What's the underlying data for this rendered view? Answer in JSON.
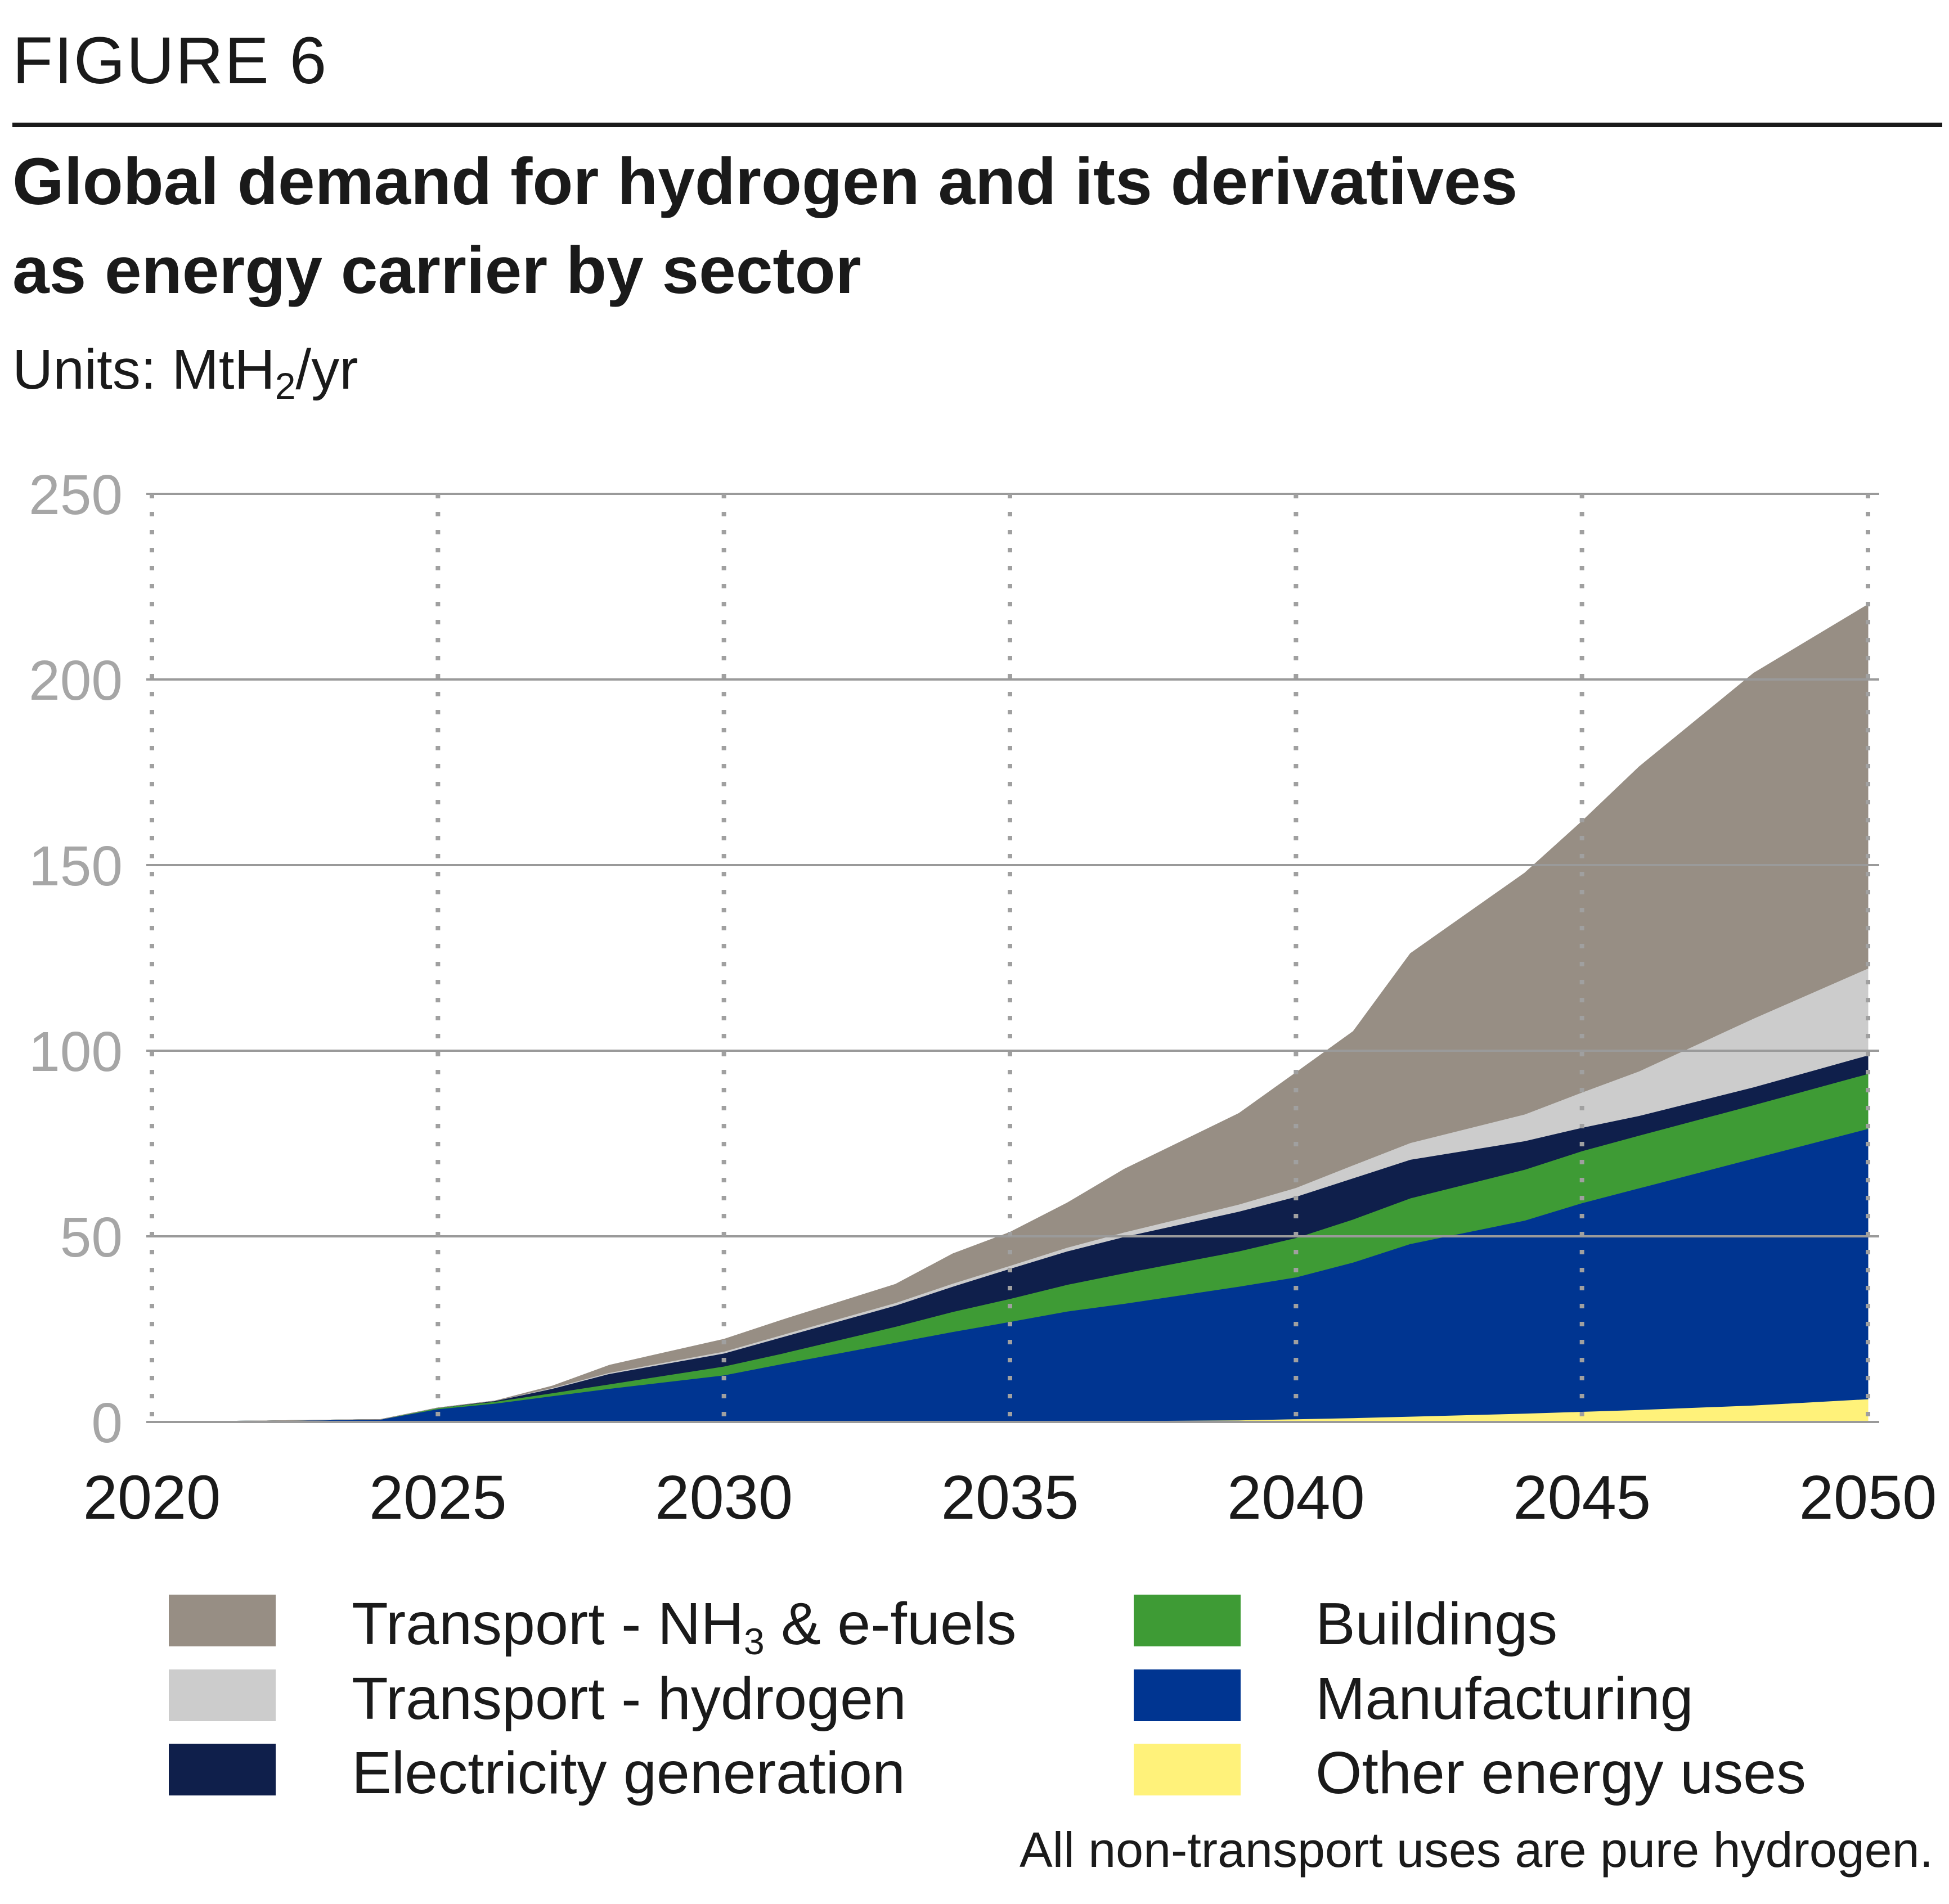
{
  "figure_label": "FIGURE 6",
  "title_line1": "Global demand for hydrogen and its derivatives",
  "title_line2": "as energy carrier by sector",
  "units_prefix": "Units: MtH",
  "units_sub": "2",
  "units_suffix": "/yr",
  "footnote": "All non-transport uses are pure hydrogen.",
  "legend": [
    {
      "label": "Transport - NH",
      "sub": "3",
      "suffix": " & e-fuels",
      "color": "#978e84"
    },
    {
      "label": "Transport - hydrogen",
      "sub": "",
      "suffix": "",
      "color": "#cccccc"
    },
    {
      "label": "Electricity generation",
      "sub": "",
      "suffix": "",
      "color": "#0f1f4b"
    },
    {
      "label": "Buildings",
      "sub": "",
      "suffix": "",
      "color": "#3e9b35"
    },
    {
      "label": "Manufacturing",
      "sub": "",
      "suffix": "",
      "color": "#003591"
    },
    {
      "label": "Other energy uses",
      "sub": "",
      "suffix": "",
      "color": "#fff27a"
    }
  ],
  "chart_data": {
    "type": "area",
    "stacked": true,
    "x": [
      2020,
      2022,
      2024,
      2025,
      2026,
      2027,
      2028,
      2030,
      2031,
      2033,
      2034,
      2035,
      2036,
      2037,
      2039,
      2040,
      2041,
      2042,
      2044,
      2045,
      2046,
      2048,
      2050
    ],
    "xticks": [
      "2020",
      "2025",
      "2030",
      "2035",
      "2040",
      "2045",
      "2050"
    ],
    "yticks": [
      "0",
      "50",
      "100",
      "150",
      "200",
      "250"
    ],
    "ylim": [
      0,
      250
    ],
    "xlim": [
      2020,
      2050
    ],
    "grid": {
      "horizontal": "solid",
      "vertical": "dotted"
    },
    "legend_position": "bottom",
    "series": [
      {
        "name": "Other energy uses",
        "color": "#fff27a",
        "values": [
          0,
          0,
          0,
          0,
          0,
          0,
          0,
          0,
          0,
          0,
          0,
          0.1,
          0.2,
          0.3,
          0.5,
          0.8,
          1.1,
          1.5,
          2.3,
          2.8,
          3.3,
          4.5,
          6.2
        ]
      },
      {
        "name": "Manufacturing",
        "color": "#003591",
        "values": [
          0,
          0.3,
          0.7,
          3.5,
          5,
          7,
          9,
          12.6,
          15.6,
          21.4,
          24.3,
          26.9,
          29.6,
          31.6,
          36,
          38.2,
          41.9,
          46.5,
          52,
          56.2,
          59.7,
          66.5,
          72.8
        ]
      },
      {
        "name": "Buildings",
        "color": "#3e9b35",
        "values": [
          0,
          0,
          0,
          0.3,
          0.5,
          0.8,
          1.2,
          2.4,
          2.8,
          4.3,
          5.4,
          6.2,
          7.2,
          8.2,
          9.5,
          10.6,
          11.6,
          12.3,
          13.7,
          14,
          14.2,
          14.4,
          14.8
        ]
      },
      {
        "name": "Electricity generation",
        "color": "#0f1f4b",
        "values": [
          0,
          0,
          0,
          0,
          0.2,
          1.2,
          2.8,
          3.5,
          4.4,
          5.7,
          6.8,
          8.1,
          9,
          9.8,
          10.7,
          11.1,
          11.1,
          10.4,
          7.7,
          6.3,
          5.3,
          4.8,
          5
        ]
      },
      {
        "name": "Transport - hydrogen",
        "color": "#cccccc",
        "values": [
          0,
          0,
          0,
          0,
          0,
          0.2,
          0.3,
          0.5,
          0.6,
          0.7,
          0.8,
          0.8,
          1,
          1.2,
          1.9,
          2.4,
          3.5,
          4.5,
          7.2,
          9.5,
          12,
          18.5,
          23.4
        ]
      },
      {
        "name": "Transport - NH3 & e-fuels",
        "color": "#978e84",
        "values": [
          0,
          0,
          0,
          0,
          0,
          0.5,
          2,
          3.3,
          4,
          5,
          8,
          9,
          12,
          17,
          24.5,
          31,
          36,
          51,
          65,
          73,
          82,
          93,
          98
        ]
      }
    ]
  }
}
